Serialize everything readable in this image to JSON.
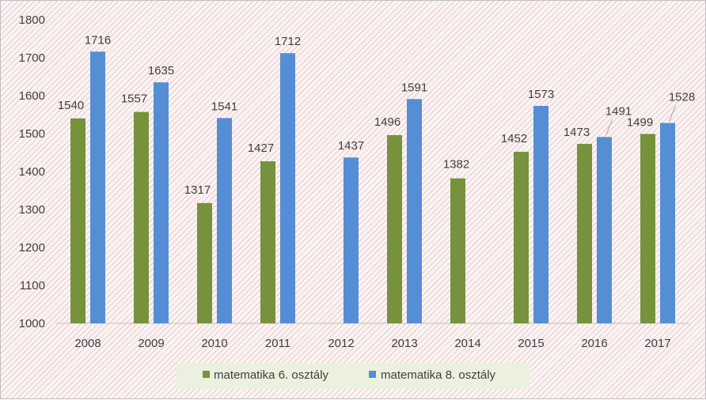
{
  "chart_data": {
    "type": "bar",
    "title": "",
    "xlabel": "",
    "ylabel": "",
    "ylim": [
      1000,
      1800
    ],
    "yticks": [
      1000,
      1100,
      1200,
      1300,
      1400,
      1500,
      1600,
      1700,
      1800
    ],
    "categories": [
      "2008",
      "2009",
      "2010",
      "2011",
      "2012",
      "2013",
      "2014",
      "2015",
      "2016",
      "2017"
    ],
    "series": [
      {
        "name": "matematika 6. osztály",
        "color": "#76923c",
        "values": [
          1540,
          1557,
          1317,
          1427,
          null,
          1496,
          1382,
          1452,
          1473,
          1499
        ]
      },
      {
        "name": "matematika 8. osztály",
        "color": "#558ed5",
        "values": [
          1716,
          1635,
          1541,
          1712,
          1437,
          1591,
          null,
          1573,
          1491,
          1528
        ]
      }
    ],
    "grid": false,
    "legend_position": "bottom",
    "legend_background": "#ebf1de"
  }
}
